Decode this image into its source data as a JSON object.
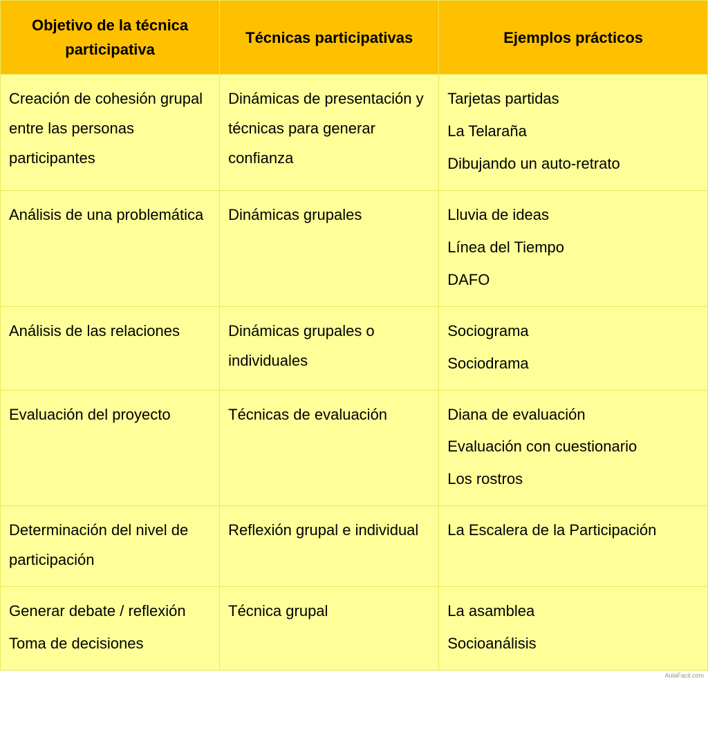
{
  "table": {
    "header_bg": "#ffc000",
    "header_text_color": "#000000",
    "body_bg": "#ffff99",
    "body_text_color": "#000000",
    "border_color": "#e8e860",
    "col_widths": [
      "31%",
      "31%",
      "38%"
    ],
    "columns": [
      "Objetivo de la técnica participativa",
      "Técnicas participativas",
      "Ejemplos prácticos"
    ],
    "rows": [
      {
        "objetivo": [
          "Creación de cohesión grupal entre las personas participantes"
        ],
        "tecnicas": [
          "Dinámicas de presentación y técnicas para generar confianza"
        ],
        "ejemplos": [
          "Tarjetas partidas",
          "La Telaraña",
          "Dibujando un auto-retrato"
        ]
      },
      {
        "objetivo": [
          "Análisis de una problemática"
        ],
        "tecnicas": [
          "Dinámicas grupales"
        ],
        "ejemplos": [
          "Lluvia de ideas",
          "Línea del Tiempo",
          "DAFO"
        ]
      },
      {
        "objetivo": [
          "Análisis de las relaciones"
        ],
        "tecnicas": [
          "Dinámicas grupales o individuales"
        ],
        "ejemplos": [
          "Sociograma",
          "Sociodrama"
        ]
      },
      {
        "objetivo": [
          "Evaluación del proyecto"
        ],
        "tecnicas": [
          "Técnicas de evaluación"
        ],
        "ejemplos": [
          "Diana de evaluación",
          "Evaluación con cuestionario",
          "Los rostros"
        ]
      },
      {
        "objetivo": [
          "Determinación del nivel de participación"
        ],
        "tecnicas": [
          "Reflexión grupal e individual"
        ],
        "ejemplos": [
          "La Escalera de la Participación"
        ]
      },
      {
        "objetivo": [
          "Generar debate / reflexión",
          "Toma de decisiones"
        ],
        "tecnicas": [
          "Técnica grupal"
        ],
        "ejemplos": [
          "La asamblea",
          "Socioanálisis"
        ]
      }
    ]
  },
  "watermark": "AulaFacil.com"
}
